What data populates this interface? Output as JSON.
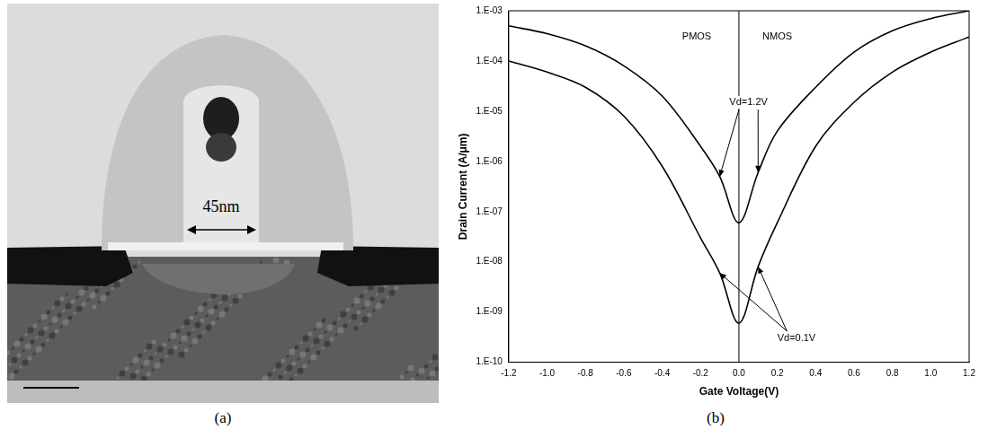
{
  "image": {
    "caption": "(a)",
    "label": "45nm"
  },
  "chart_data": {
    "type": "line",
    "caption": "(b)",
    "x_label": "Gate Voltage(V)",
    "y_label": "Drain Current (A/μm)",
    "log": "y",
    "grid": false,
    "xlim": [
      -1.2,
      1.2
    ],
    "xticks": [
      -1.2,
      {
        "value": -1,
        "label": "-1.0"
      },
      -0.8,
      -0.6,
      -0.4,
      -0.2,
      {
        "value": 0,
        "label": "0.0"
      },
      0.2,
      0.4,
      0.6,
      0.8,
      {
        "value": 1,
        "label": "1.0"
      },
      1.2
    ],
    "ylim": [
      1e-10,
      0.001
    ],
    "yticks": [
      {
        "value": 1e-10,
        "label": "1.E-10"
      },
      {
        "value": 1e-09,
        "label": "1.E-09"
      },
      {
        "value": 1e-08,
        "label": "1.E-08"
      },
      {
        "value": 1e-07,
        "label": "1.E-07"
      },
      {
        "value": 1e-06,
        "label": "1.E-06"
      },
      {
        "value": 1e-05,
        "label": "1.E-05"
      },
      {
        "value": 0.0001,
        "label": "1.E-04"
      },
      {
        "value": 0.001,
        "label": "1.E-03"
      }
    ],
    "series": [
      {
        "color": "#000000",
        "marker": "none",
        "line_style": "solid",
        "x": [
          -1.2,
          -1,
          -0.8,
          -0.6,
          -0.4,
          -0.2,
          -0.1,
          0,
          0.1,
          0.2,
          0.4,
          0.6,
          0.8,
          1,
          1.2
        ],
        "values": [
          0.0005,
          0.00035,
          0.0002,
          8e-05,
          2e-05,
          2e-06,
          5e-07,
          6e-08,
          6e-07,
          4e-06,
          3e-05,
          0.00015,
          0.0004,
          0.0007,
          0.001
        ]
      },
      {
        "color": "#000000",
        "marker": "none",
        "line_style": "solid",
        "x": [
          -1.2,
          -1,
          -0.8,
          -0.6,
          -0.4,
          -0.2,
          -0.1,
          0,
          0.1,
          0.2,
          0.4,
          0.6,
          0.8,
          1,
          1.2
        ],
        "values": [
          0.0001,
          6e-05,
          3e-05,
          8e-06,
          8e-07,
          3e-08,
          6e-09,
          6e-10,
          8e-09,
          6e-08,
          2e-06,
          1.5e-05,
          6e-05,
          0.00015,
          0.0003
        ]
      }
    ],
    "divider": 0,
    "annotations": [
      {
        "text": "PMOS",
        "x": -0.22,
        "y": 0.0003
      },
      {
        "text": "NMOS",
        "x": 0.2,
        "y": 0.0003
      },
      {
        "text": "Vd=1.2V",
        "x": 0.05,
        "y": 1.5e-05,
        "series": 0,
        "arrow_x": [
          -0.1,
          0.1
        ]
      },
      {
        "text": "Vd=0.1V",
        "x": 0.3,
        "y": 3e-10,
        "series": 1,
        "arrow_x": [
          -0.1,
          0.1
        ]
      }
    ]
  }
}
